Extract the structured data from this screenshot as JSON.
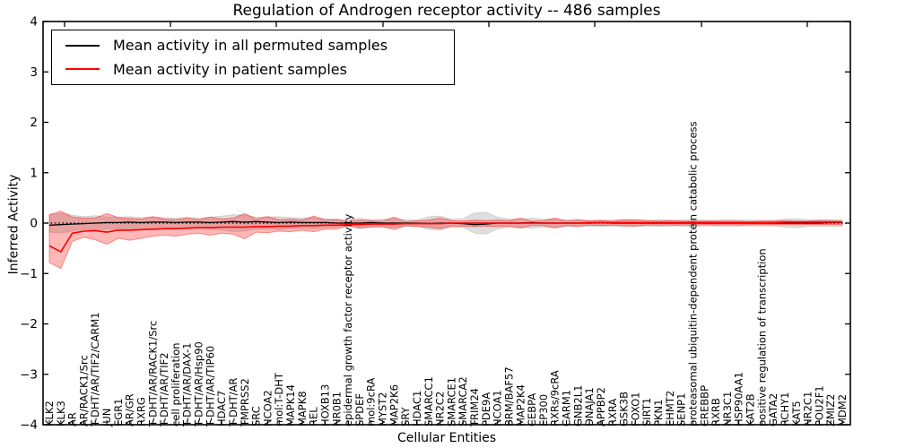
{
  "title": "Regulation of Androgen receptor activity -- 486 samples",
  "legend": {
    "items": [
      {
        "label": "Mean activity in all permuted samples",
        "color": "#000000"
      },
      {
        "label": "Mean activity in patient samples",
        "color": "#ff0000"
      }
    ],
    "position": "upper left"
  },
  "chart_data": {
    "type": "line",
    "title": "Regulation of Androgen receptor activity -- 486 samples",
    "xlabel": "Cellular Entities",
    "ylabel": "Inferred Activity",
    "ylim": [
      -4,
      4
    ],
    "yticks": [
      4,
      3,
      2,
      1,
      0,
      -1,
      -2,
      -3,
      -4
    ],
    "grid": false,
    "zero_line": true,
    "categories": [
      "KLK2",
      "KLK3",
      "AR",
      "AR/RACK1/Src",
      "T-DHT/AR/TIF2/CARM1",
      "JUN",
      "EGR1",
      "AR/GR",
      "RXRG",
      "T-DHT/AR/RACK1/Src",
      "T-DHT/AR/TIF2",
      "cell proliferation",
      "T-DHT/AR/DAX-1",
      "T-DHT/AR/Hsp90",
      "T-DHT/AR/TIP60",
      "HDAC7",
      "T-DHT/AR",
      "TMPRSS2",
      "SRC",
      "NCOA2",
      "mol:T-DHT",
      "MAPK14",
      "MAPK8",
      "REL",
      "HOXB13",
      "NR0B1",
      "epidermal growth factor receptor activity",
      "SPDEF",
      "mol:9cRA",
      "MYST2",
      "MAP2K6",
      "SRY",
      "HDAC1",
      "SMARCC1",
      "NR2C2",
      "SMARCE1",
      "SMARCA2",
      "TRIM24",
      "PDE9A",
      "NCOA1",
      "BRM/BAF57",
      "MAP2K4",
      "CEBPA",
      "EP300",
      "RXRs/9cRA",
      "CARM1",
      "GNB2L1",
      "DNAJA1",
      "APPBP2",
      "RXRA",
      "GSK3B",
      "FOXO1",
      "SIRT1",
      "PKN1",
      "EHMT2",
      "SENP1",
      "proteasomal ubiquitin-dependent protein catabolic process",
      "CREBBP",
      "RXRB",
      "NR3C1",
      "HSP90AA1",
      "KAT2B",
      "positive regulation of transcription",
      "GATA2",
      "RCHY1",
      "KAT5",
      "NR2C1",
      "POU2F1",
      "ZMIZ2",
      "MDM2"
    ],
    "series": [
      {
        "name": "Mean activity in all permuted samples",
        "color": "#000000",
        "values": [
          -0.04,
          -0.03,
          -0.02,
          -0.01,
          0,
          0.01,
          0.01,
          0.02,
          0.01,
          0.02,
          0.02,
          0.01,
          0.02,
          0.02,
          0.01,
          0.02,
          0.03,
          0.02,
          0.03,
          0.02,
          0.01,
          0.02,
          0.01,
          0.01,
          0.01,
          0,
          0,
          0,
          0.01,
          0,
          0,
          0,
          0,
          -0.01,
          0,
          0,
          -0.01,
          -0.03,
          -0.02,
          0,
          0,
          0,
          0.01,
          0,
          0,
          0,
          0,
          0,
          0.01,
          0,
          0,
          0,
          0,
          0,
          0,
          0,
          0,
          0,
          0,
          0,
          0,
          0,
          0,
          0,
          0,
          0,
          0,
          0,
          0.01,
          0.01
        ]
      },
      {
        "name": "Mean activity in patient samples",
        "color": "#ff0000",
        "values": [
          -0.45,
          -0.57,
          -0.2,
          -0.16,
          -0.15,
          -0.18,
          -0.14,
          -0.14,
          -0.13,
          -0.12,
          -0.11,
          -0.11,
          -0.1,
          -0.09,
          -0.09,
          -0.08,
          -0.08,
          -0.08,
          -0.07,
          -0.07,
          -0.06,
          -0.06,
          -0.05,
          -0.05,
          -0.04,
          -0.04,
          -0.03,
          -0.03,
          -0.02,
          -0.02,
          -0.02,
          -0.01,
          -0.01,
          -0.01,
          -0.01,
          0,
          0,
          0,
          0,
          0,
          0,
          0,
          0,
          0,
          0,
          0,
          0,
          0.01,
          0.01,
          0.01,
          0.01,
          0.01,
          0.01,
          0.01,
          0.01,
          0.01,
          0.01,
          0.01,
          0.01,
          0.01,
          0.01,
          0.01,
          0.01,
          0.01,
          0.02,
          0.02,
          0.02,
          0.02,
          0.02,
          0.02
        ]
      }
    ],
    "bands": [
      {
        "name": "permuted-samples-range",
        "fill": "rgba(0,0,0,0.13)",
        "stroke": "rgba(0,0,0,0.10)",
        "upper": [
          0.18,
          0.2,
          0.16,
          0.13,
          0.15,
          0.12,
          0.12,
          0.13,
          0.11,
          0.12,
          0.11,
          0.1,
          0.12,
          0.1,
          0.12,
          0.14,
          0.17,
          0.16,
          0.12,
          0.12,
          0.13,
          0.11,
          0.1,
          0.11,
          0.09,
          0.08,
          0.07,
          0.1,
          0.07,
          0.08,
          0.09,
          0.07,
          0.06,
          0.13,
          0.14,
          0.08,
          0.09,
          0.2,
          0.22,
          0.12,
          0.08,
          0.08,
          0.1,
          0.08,
          0.08,
          0.07,
          0.08,
          0.06,
          0.07,
          0.06,
          0.08,
          0.06,
          0.06,
          0.07,
          0.06,
          0.06,
          0.07,
          0.06,
          0.06,
          0.07,
          0.06,
          0.06,
          0.06,
          0.06,
          0.08,
          0.09,
          0.07,
          0.06,
          0.07,
          0.07
        ],
        "lower": [
          -0.18,
          -0.2,
          -0.16,
          -0.13,
          -0.15,
          -0.12,
          -0.12,
          -0.13,
          -0.11,
          -0.12,
          -0.11,
          -0.1,
          -0.12,
          -0.1,
          -0.12,
          -0.14,
          -0.17,
          -0.16,
          -0.12,
          -0.12,
          -0.13,
          -0.11,
          -0.1,
          -0.11,
          -0.09,
          -0.08,
          -0.07,
          -0.1,
          -0.07,
          -0.08,
          -0.09,
          -0.07,
          -0.06,
          -0.13,
          -0.14,
          -0.08,
          -0.09,
          -0.2,
          -0.22,
          -0.12,
          -0.08,
          -0.08,
          -0.1,
          -0.08,
          -0.08,
          -0.07,
          -0.08,
          -0.06,
          -0.07,
          -0.06,
          -0.08,
          -0.06,
          -0.06,
          -0.07,
          -0.06,
          -0.06,
          -0.07,
          -0.06,
          -0.06,
          -0.07,
          -0.06,
          -0.06,
          -0.06,
          -0.06,
          -0.08,
          -0.09,
          -0.07,
          -0.06,
          -0.07,
          -0.07
        ]
      },
      {
        "name": "patient-samples-range",
        "fill": "rgba(255,0,0,0.28)",
        "stroke": "rgba(255,0,0,0.40)",
        "upper": [
          0.16,
          0.24,
          0.12,
          0.1,
          0.1,
          0.19,
          0.11,
          0.09,
          0.08,
          0.13,
          0.08,
          0.07,
          0.1,
          0.07,
          0.12,
          0.08,
          0.1,
          0.19,
          0.08,
          0.13,
          0.07,
          0.08,
          0.06,
          0.14,
          0.06,
          0.07,
          0.03,
          0.06,
          0.05,
          0.04,
          0.12,
          0.03,
          0.05,
          0.06,
          0.1,
          0.05,
          0.04,
          0.06,
          0.05,
          0.06,
          0.05,
          0.1,
          0.04,
          0.05,
          0.1,
          0.04,
          0.06,
          0.04,
          0.05,
          0.04,
          0.06,
          0.07,
          0.05,
          0.04,
          0.05,
          0.04,
          0.04,
          0.04,
          0.04,
          0.04,
          0.04,
          0.03,
          0.04,
          0.04,
          0.05,
          0.04,
          0.04,
          0.06,
          0.05,
          0.04
        ],
        "lower": [
          -0.78,
          -0.9,
          -0.36,
          -0.28,
          -0.33,
          -0.42,
          -0.3,
          -0.34,
          -0.3,
          -0.26,
          -0.24,
          -0.26,
          -0.22,
          -0.2,
          -0.24,
          -0.2,
          -0.22,
          -0.31,
          -0.18,
          -0.19,
          -0.16,
          -0.17,
          -0.14,
          -0.17,
          -0.12,
          -0.12,
          -0.05,
          -0.1,
          -0.08,
          -0.07,
          -0.13,
          -0.05,
          -0.07,
          -0.08,
          -0.11,
          -0.06,
          -0.06,
          -0.07,
          -0.06,
          -0.07,
          -0.06,
          -0.1,
          -0.05,
          -0.05,
          -0.1,
          -0.05,
          -0.06,
          -0.04,
          -0.05,
          -0.04,
          -0.05,
          -0.06,
          -0.04,
          -0.04,
          -0.04,
          -0.04,
          -0.04,
          -0.03,
          -0.04,
          -0.03,
          -0.04,
          -0.03,
          -0.03,
          -0.03,
          -0.03,
          -0.03,
          -0.03,
          -0.03,
          -0.03,
          -0.03
        ]
      }
    ]
  }
}
